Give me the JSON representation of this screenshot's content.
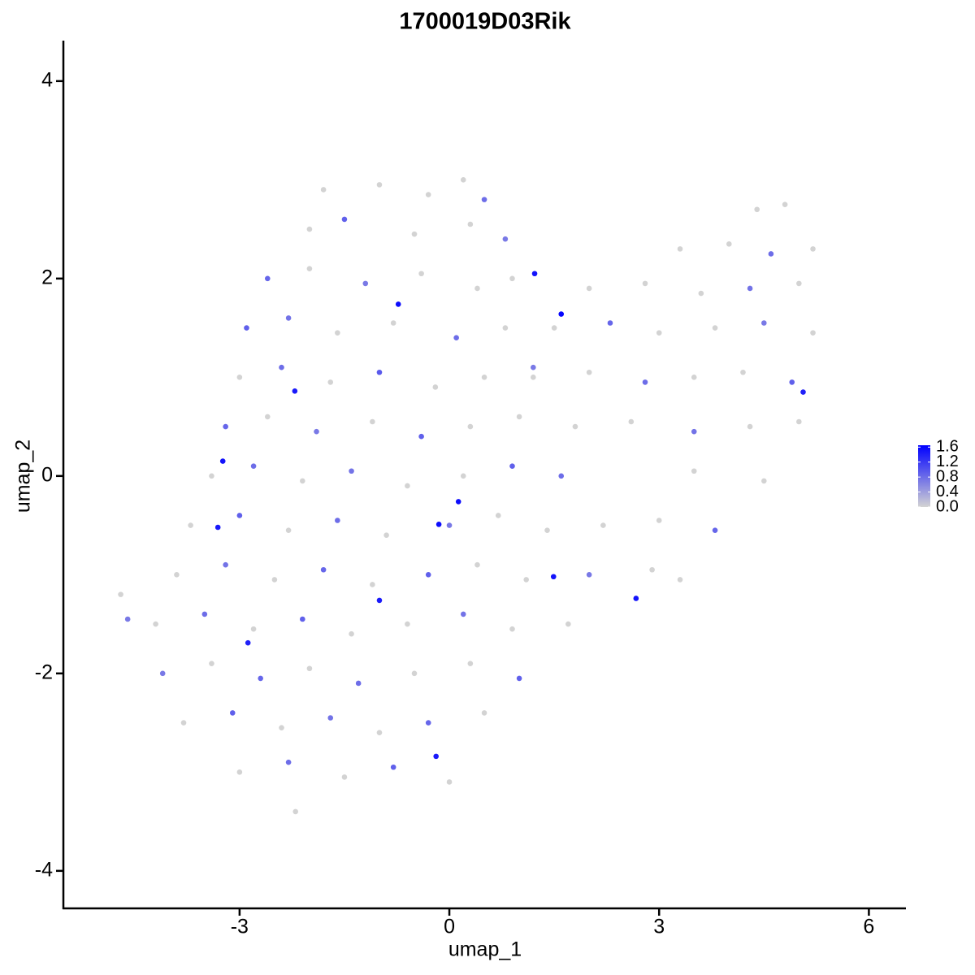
{
  "chart_data": {
    "type": "scatter",
    "title": "1700019D03Rik",
    "x_label": "umap_1",
    "y_label": "umap_2",
    "xlim": [
      -5.52,
      6.53
    ],
    "ylim": [
      -4.38,
      4.41
    ],
    "xticks": [
      -3,
      0,
      3,
      6
    ],
    "yticks": [
      -4,
      -2,
      0,
      2,
      4
    ],
    "color_low": "#d3d3d3",
    "color_high": "#0000ff",
    "color_lim": [
      0,
      1.65
    ],
    "color_ticks": [
      {
        "value": 0,
        "label": "0.0"
      },
      0.4,
      0.8,
      1.2,
      1.6
    ],
    "x": [
      1.6,
      -0.73,
      -3.24,
      -2.21,
      -0.15,
      1.49,
      -1.0,
      2.67,
      -2.88,
      -0.19,
      5.06,
      0.13,
      1.22,
      -3.31,
      -1.8,
      -1.0,
      -0.3,
      0.2,
      0.5,
      -2.0,
      -1.5,
      -0.5,
      0.3,
      0.8,
      -2.6,
      -2.0,
      -1.2,
      -0.4,
      0.4,
      0.9,
      -2.9,
      -2.3,
      -1.6,
      -0.8,
      0.1,
      0.8,
      -3.0,
      -2.4,
      -1.7,
      -1.0,
      -0.2,
      0.5,
      1.2,
      -3.2,
      -2.6,
      -1.9,
      -1.1,
      -0.4,
      0.3,
      1.0,
      -3.4,
      -2.8,
      -2.1,
      -1.4,
      -0.6,
      0.2,
      0.9,
      -3.7,
      -3.0,
      -2.3,
      -1.6,
      -0.9,
      0.0,
      0.7,
      1.4,
      -3.9,
      -3.2,
      -2.5,
      -1.8,
      -1.1,
      -0.3,
      0.4,
      1.1,
      -4.2,
      -3.5,
      -2.8,
      -2.1,
      -1.4,
      -0.6,
      0.2,
      0.9,
      -4.1,
      -3.4,
      -2.7,
      -2.0,
      -1.3,
      -0.5,
      0.3,
      1.0,
      -3.8,
      -3.1,
      -2.4,
      -1.7,
      -1.0,
      -0.3,
      0.5,
      -3.0,
      -2.3,
      -1.5,
      -0.8,
      0.0,
      -2.2,
      -4.7,
      -4.6,
      4.4,
      4.8,
      3.3,
      4.0,
      4.6,
      5.2,
      2.0,
      2.8,
      3.6,
      4.3,
      5.0,
      1.5,
      2.3,
      3.0,
      3.8,
      4.5,
      5.2,
      1.2,
      2.0,
      2.8,
      3.5,
      4.2,
      4.9,
      1.8,
      2.6,
      3.5,
      4.3,
      5.0,
      1.6,
      3.5,
      4.5,
      2.2,
      3.0,
      3.8,
      2.0,
      2.9,
      3.3,
      1.7
    ],
    "y": [
      1.64,
      1.74,
      0.15,
      0.86,
      -0.49,
      -1.02,
      -1.26,
      -1.24,
      -1.69,
      -2.84,
      0.85,
      -0.26,
      2.05,
      -0.52,
      2.9,
      2.95,
      2.85,
      3.0,
      2.8,
      2.5,
      2.6,
      2.45,
      2.55,
      2.4,
      2.0,
      2.1,
      1.95,
      2.05,
      1.9,
      2.0,
      1.5,
      1.6,
      1.45,
      1.55,
      1.4,
      1.5,
      1.0,
      1.1,
      0.95,
      1.05,
      0.9,
      1.0,
      1.1,
      0.5,
      0.6,
      0.45,
      0.55,
      0.4,
      0.5,
      0.6,
      0.0,
      0.1,
      -0.05,
      0.05,
      -0.1,
      0.0,
      0.1,
      -0.5,
      -0.4,
      -0.55,
      -0.45,
      -0.6,
      -0.5,
      -0.4,
      -0.55,
      -1.0,
      -0.9,
      -1.05,
      -0.95,
      -1.1,
      -1.0,
      -0.9,
      -1.05,
      -1.5,
      -1.4,
      -1.55,
      -1.45,
      -1.6,
      -1.5,
      -1.4,
      -1.55,
      -2.0,
      -1.9,
      -2.05,
      -1.95,
      -2.1,
      -2.0,
      -1.9,
      -2.05,
      -2.5,
      -2.4,
      -2.55,
      -2.45,
      -2.6,
      -2.5,
      -2.4,
      -3.0,
      -2.9,
      -3.05,
      -2.95,
      -3.1,
      -3.4,
      -1.2,
      -1.45,
      2.7,
      2.75,
      2.3,
      2.35,
      2.25,
      2.3,
      1.9,
      1.95,
      1.85,
      1.9,
      1.95,
      1.5,
      1.55,
      1.45,
      1.5,
      1.55,
      1.45,
      1.0,
      1.05,
      0.95,
      1.0,
      1.05,
      0.95,
      0.5,
      0.55,
      0.45,
      0.5,
      0.55,
      0.0,
      0.05,
      -0.05,
      -0.5,
      -0.45,
      -0.55,
      -1.0,
      -0.95,
      -1.05,
      -1.5
    ],
    "values": [
      1.6,
      1.55,
      1.5,
      1.45,
      1.55,
      1.5,
      1.45,
      1.5,
      1.4,
      1.45,
      1.4,
      1.55,
      1.5,
      1.45,
      0,
      0,
      0,
      0,
      0.8,
      0,
      0.9,
      0,
      0,
      0.7,
      0.85,
      0,
      0.7,
      0,
      0,
      0,
      0.9,
      0.75,
      0,
      0,
      0.8,
      0,
      0,
      0.8,
      0,
      0.95,
      0,
      0,
      0.7,
      0.85,
      0,
      0.7,
      0,
      0.9,
      0,
      0,
      0,
      0.8,
      0,
      0.75,
      0,
      0,
      0.9,
      0,
      0.9,
      0,
      0.8,
      0,
      0.7,
      0,
      0,
      0,
      0.75,
      0,
      0.85,
      0,
      0.9,
      0,
      0,
      0,
      0.8,
      0,
      0.9,
      0,
      0,
      0.75,
      0,
      0.7,
      0,
      0.85,
      0,
      0.8,
      0,
      0,
      0.9,
      0,
      0.9,
      0,
      0.75,
      0,
      0.85,
      0,
      0,
      0.8,
      0,
      0.9,
      0,
      0,
      0,
      0.7,
      0,
      0,
      0,
      0,
      0.8,
      0,
      0,
      0,
      0,
      0.75,
      0,
      0,
      0.85,
      0,
      0,
      0.7,
      0,
      0,
      0,
      0.8,
      0,
      0,
      0.9,
      0,
      0,
      0.75,
      0,
      0,
      0.8,
      0,
      0,
      0,
      0,
      0.85,
      0.7,
      0,
      0,
      0
    ]
  }
}
